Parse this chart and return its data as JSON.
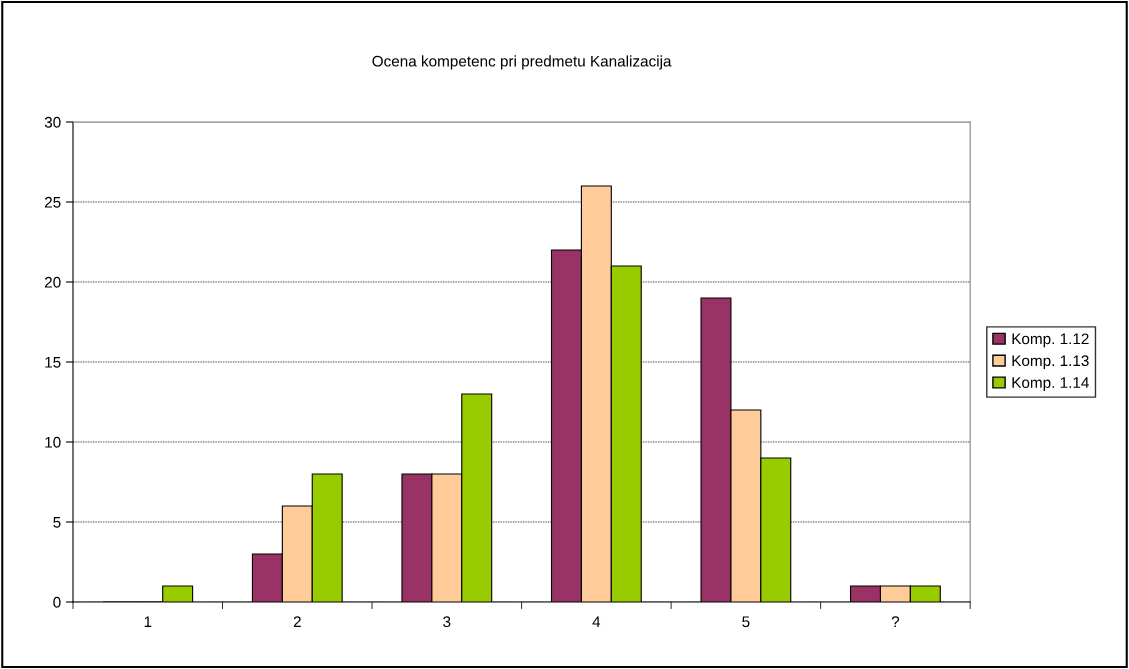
{
  "chart_data": {
    "type": "bar",
    "title": "Ocena kompetenc pri predmetu Kanalizacija",
    "categories": [
      "1",
      "2",
      "3",
      "4",
      "5",
      "?"
    ],
    "series": [
      {
        "name": "Komp. 1.12",
        "color": "#993366",
        "values": [
          0,
          3,
          8,
          22,
          19,
          1
        ]
      },
      {
        "name": "Komp. 1.13",
        "color": "#ffcc99",
        "values": [
          0,
          6,
          8,
          26,
          12,
          1
        ]
      },
      {
        "name": "Komp. 1.14",
        "color": "#99cc00",
        "values": [
          1,
          8,
          13,
          21,
          9,
          1
        ]
      }
    ],
    "ylim": [
      0,
      30
    ],
    "yticks": [
      0,
      5,
      10,
      15,
      20,
      25,
      30
    ],
    "grid": "y",
    "legend": "right"
  }
}
